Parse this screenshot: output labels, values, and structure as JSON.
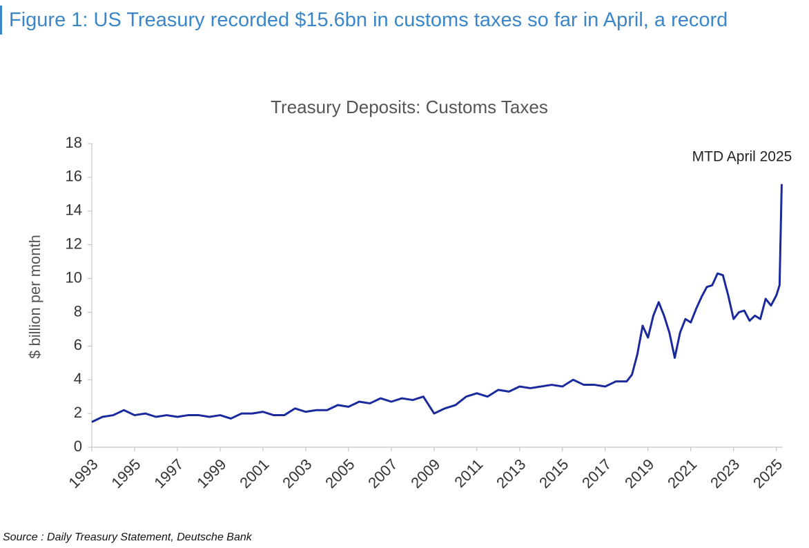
{
  "figure_title": "Figure 1: US Treasury recorded $15.6bn in customs taxes so far in April, a record",
  "source": "Source : Daily Treasury Statement, Deutsche Bank",
  "chart_data": {
    "type": "line",
    "title": "Treasury Deposits: Customs Taxes",
    "ylabel": "$ billion per month",
    "annotation": "MTD April 2025",
    "x": [
      1993.0,
      1993.5,
      1994.0,
      1994.5,
      1995.0,
      1995.5,
      1996.0,
      1996.5,
      1997.0,
      1997.5,
      1998.0,
      1998.5,
      1999.0,
      1999.5,
      2000.0,
      2000.5,
      2001.0,
      2001.5,
      2002.0,
      2002.5,
      2003.0,
      2003.5,
      2004.0,
      2004.5,
      2005.0,
      2005.5,
      2006.0,
      2006.5,
      2007.0,
      2007.5,
      2008.0,
      2008.5,
      2009.0,
      2009.5,
      2010.0,
      2010.5,
      2011.0,
      2011.5,
      2012.0,
      2012.5,
      2013.0,
      2013.5,
      2014.0,
      2014.5,
      2015.0,
      2015.5,
      2016.0,
      2016.5,
      2017.0,
      2017.5,
      2018.0,
      2018.25,
      2018.5,
      2018.75,
      2019.0,
      2019.25,
      2019.5,
      2019.75,
      2020.0,
      2020.25,
      2020.5,
      2020.75,
      2021.0,
      2021.25,
      2021.5,
      2021.75,
      2022.0,
      2022.25,
      2022.5,
      2022.75,
      2023.0,
      2023.25,
      2023.5,
      2023.75,
      2024.0,
      2024.25,
      2024.5,
      2024.75,
      2025.0,
      2025.15,
      2025.25
    ],
    "series": [
      {
        "name": "Customs taxes",
        "color": "#1a2a9c",
        "values": [
          1.5,
          1.8,
          1.9,
          2.2,
          1.9,
          2.0,
          1.8,
          1.9,
          1.8,
          1.9,
          1.9,
          1.8,
          1.9,
          1.7,
          2.0,
          2.0,
          2.1,
          1.9,
          1.9,
          2.3,
          2.1,
          2.2,
          2.2,
          2.5,
          2.4,
          2.7,
          2.6,
          2.9,
          2.7,
          2.9,
          2.8,
          3.0,
          2.0,
          2.3,
          2.5,
          3.0,
          3.2,
          3.0,
          3.4,
          3.3,
          3.6,
          3.5,
          3.6,
          3.7,
          3.6,
          4.0,
          3.7,
          3.7,
          3.6,
          3.9,
          3.9,
          4.3,
          5.5,
          7.2,
          6.5,
          7.8,
          8.6,
          7.8,
          6.8,
          5.3,
          6.8,
          7.6,
          7.4,
          8.2,
          8.9,
          9.5,
          9.6,
          10.3,
          10.2,
          9.0,
          7.6,
          8.0,
          8.1,
          7.5,
          7.8,
          7.6,
          8.8,
          8.4,
          9.0,
          9.6,
          15.6
        ]
      }
    ],
    "xlim": [
      1993,
      2025.3
    ],
    "xticks": [
      1993,
      1995,
      1997,
      1999,
      2001,
      2003,
      2005,
      2007,
      2009,
      2011,
      2013,
      2015,
      2017,
      2019,
      2021,
      2023,
      2025
    ],
    "ylim": [
      0,
      18
    ],
    "yticks": [
      0,
      2,
      4,
      6,
      8,
      10,
      12,
      14,
      16,
      18
    ],
    "grid": false
  }
}
